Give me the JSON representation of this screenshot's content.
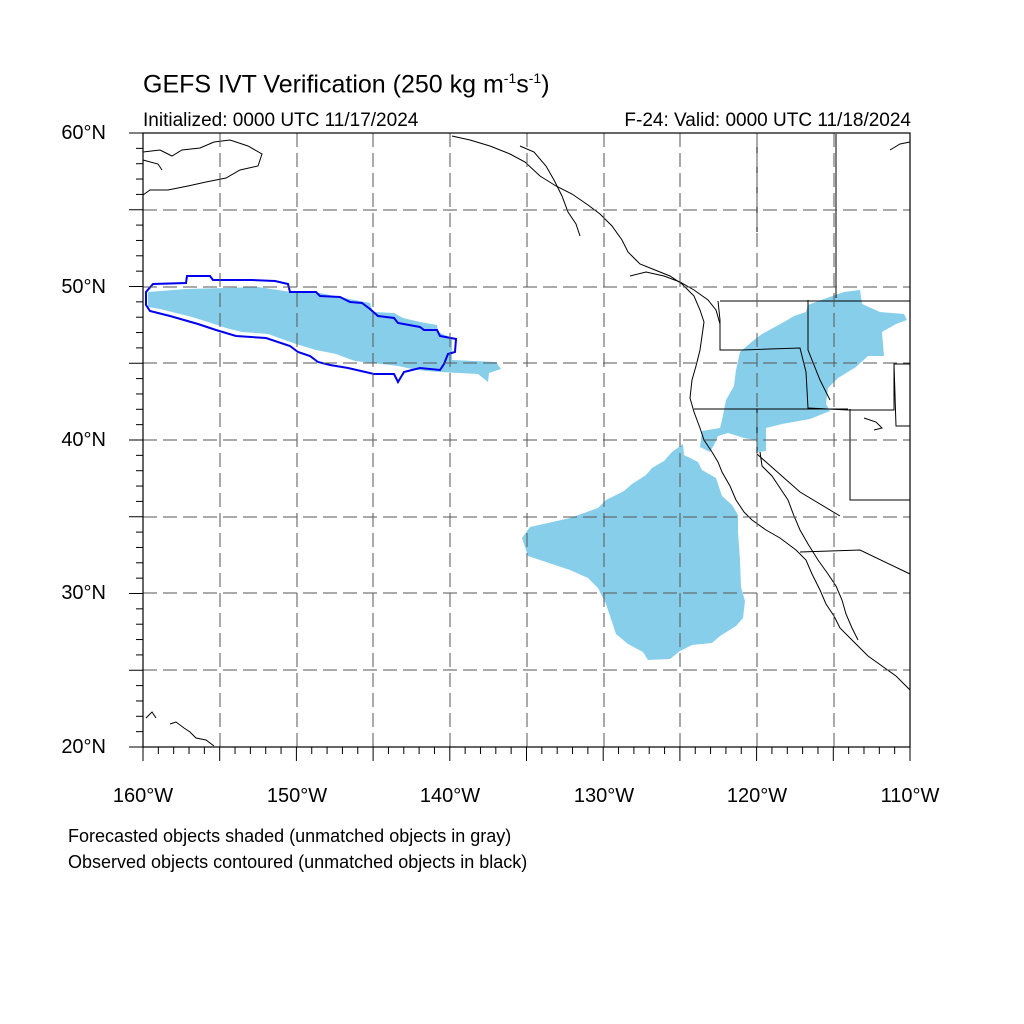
{
  "title": {
    "main": "GEFS IVT Verification (250 kg m",
    "sup1": "-1",
    "mid": "s",
    "sup2": "-1",
    "end": ")"
  },
  "subtitle_left": "Initialized: 0000 UTC 11/17/2024",
  "subtitle_right": "F-24: Valid: 0000 UTC 11/18/2024",
  "lat_labels": [
    "60°N",
    "50°N",
    "40°N",
    "30°N",
    "20°N"
  ],
  "lon_labels": [
    "160°W",
    "150°W",
    "140°W",
    "130°W",
    "120°W",
    "110°W"
  ],
  "notes": [
    "Forecasted objects shaded (unmatched objects in gray)",
    "Observed objects contoured (unmatched objects in black)"
  ],
  "map": {
    "lon_range": [
      -160,
      -110
    ],
    "lat_range": [
      20,
      60
    ],
    "grid_step_deg": 5,
    "grid_style": "dashed",
    "colors": {
      "forecast_fill": "#87ceeb",
      "observed_contour": "#0000ee",
      "coastline": "#000000",
      "grid": "#555555"
    }
  }
}
